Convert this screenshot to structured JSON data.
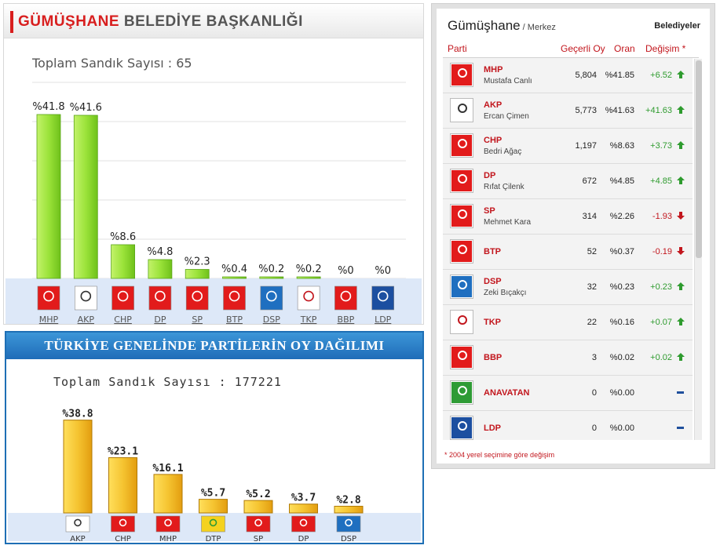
{
  "local_panel": {
    "title_red": "GÜMÜŞHANE",
    "title_rest": " BELEDİYE BAŞKANLIĞI",
    "ballot_count_text": "Toplam Sandık Sayısı : 65"
  },
  "national_panel": {
    "title": "TÜRKİYE GENELİNDE PARTİLERİN OY DAĞILIMI",
    "ballot_count_text": "Toplam Sandık Sayısı : 177221"
  },
  "results_panel": {
    "city": "Gümüşhane",
    "district": " / Merkez",
    "tab": "Belediyeler",
    "columns": {
      "party": "Parti",
      "valid_votes": "Geçerli Oy",
      "ratio": "Oran",
      "change": "Değişim *"
    },
    "footnote": "* 2004 yerel seçimine göre değişim",
    "rows": [
      {
        "party": "MHP",
        "candidate": "Mustafa Canlı",
        "votes": "5,804",
        "pct": "%41.85",
        "change": "+6.52",
        "trend": "up",
        "logo_text": "MHP",
        "logo_bg": "#e21b1b",
        "logo_fg": "#ffffff"
      },
      {
        "party": "AKP",
        "candidate": "Ercan Çimen",
        "votes": "5,773",
        "pct": "%41.63",
        "change": "+41.63",
        "trend": "up",
        "logo_text": "AK PARTİ",
        "logo_bg": "#ffffff",
        "logo_fg": "#333333"
      },
      {
        "party": "CHP",
        "candidate": "Bedri Ağaç",
        "votes": "1,197",
        "pct": "%8.63",
        "change": "+3.73",
        "trend": "up",
        "logo_text": "CHP",
        "logo_bg": "#e21b1b",
        "logo_fg": "#ffffff"
      },
      {
        "party": "DP",
        "candidate": "Rıfat Çilenk",
        "votes": "672",
        "pct": "%4.85",
        "change": "+4.85",
        "trend": "up",
        "logo_text": "DP",
        "logo_bg": "#e21b1b",
        "logo_fg": "#ffffff"
      },
      {
        "party": "SP",
        "candidate": "Mehmet Kara",
        "votes": "314",
        "pct": "%2.26",
        "change": "-1.93",
        "trend": "down",
        "logo_text": "SAADET",
        "logo_bg": "#e21b1b",
        "logo_fg": "#ffffff"
      },
      {
        "party": "BTP",
        "candidate": "",
        "votes": "52",
        "pct": "%0.37",
        "change": "-0.19",
        "trend": "down",
        "logo_text": "BTP",
        "logo_bg": "#e21b1b",
        "logo_fg": "#ffffff"
      },
      {
        "party": "DSP",
        "candidate": "Zeki Bıçakçı",
        "votes": "32",
        "pct": "%0.23",
        "change": "+0.23",
        "trend": "up",
        "logo_text": "DSP",
        "logo_bg": "#1f6fc0",
        "logo_fg": "#ffffff"
      },
      {
        "party": "TKP",
        "candidate": "",
        "votes": "22",
        "pct": "%0.16",
        "change": "+0.07",
        "trend": "up",
        "logo_text": "TKP",
        "logo_bg": "#ffffff",
        "logo_fg": "#c2161d"
      },
      {
        "party": "BBP",
        "candidate": "",
        "votes": "3",
        "pct": "%0.02",
        "change": "+0.02",
        "trend": "up",
        "logo_text": "BBP",
        "logo_bg": "#e21b1b",
        "logo_fg": "#ffffff"
      },
      {
        "party": "ANAVATAN",
        "candidate": "",
        "votes": "0",
        "pct": "%0.00",
        "change": "",
        "trend": "flat",
        "logo_text": "ANAVATAN",
        "logo_bg": "#2e9b35",
        "logo_fg": "#ffffff"
      },
      {
        "party": "LDP",
        "candidate": "",
        "votes": "0",
        "pct": "%0.00",
        "change": "",
        "trend": "flat",
        "logo_text": "LDP",
        "logo_bg": "#1c4fa0",
        "logo_fg": "#ffffff"
      }
    ]
  },
  "colors": {
    "accent_red": "#d81e1e",
    "up": "#2e9b2e",
    "down": "#c2161d",
    "flat": "#1f4f9c",
    "local_bar": "#9be33a",
    "national_bar": "#f5c431"
  },
  "chart_data": [
    {
      "type": "bar",
      "title": "GÜMÜŞHANE BELEDİYE BAŞKANLIĞI",
      "categories": [
        "MHP",
        "AKP",
        "CHP",
        "DP",
        "SP",
        "BTP",
        "DSP",
        "TKP",
        "BBP",
        "LDP"
      ],
      "values": [
        41.8,
        41.6,
        8.6,
        4.8,
        2.3,
        0.4,
        0.2,
        0.2,
        0,
        0
      ],
      "value_labels": [
        "%41.8",
        "%41.6",
        "%8.6",
        "%4.8",
        "%2.3",
        "%0.4",
        "%0.2",
        "%0.2",
        "%0",
        "%0"
      ],
      "ylim": [
        0,
        50
      ],
      "grid": true,
      "xlabel": "",
      "ylabel": ""
    },
    {
      "type": "bar",
      "title": "TÜRKİYE GENELİNDE PARTİLERİN OY DAĞILIMI",
      "categories": [
        "AKP",
        "CHP",
        "MHP",
        "DTP",
        "SP",
        "DP",
        "DSP"
      ],
      "values": [
        38.8,
        23.1,
        16.1,
        5.7,
        5.2,
        3.7,
        2.8
      ],
      "value_labels": [
        "%38.8",
        "%23.1",
        "%16.1",
        "%5.7",
        "%5.2",
        "%3.7",
        "%2.8"
      ],
      "ylim": [
        0,
        40
      ],
      "grid": false,
      "xlabel": "",
      "ylabel": ""
    }
  ]
}
